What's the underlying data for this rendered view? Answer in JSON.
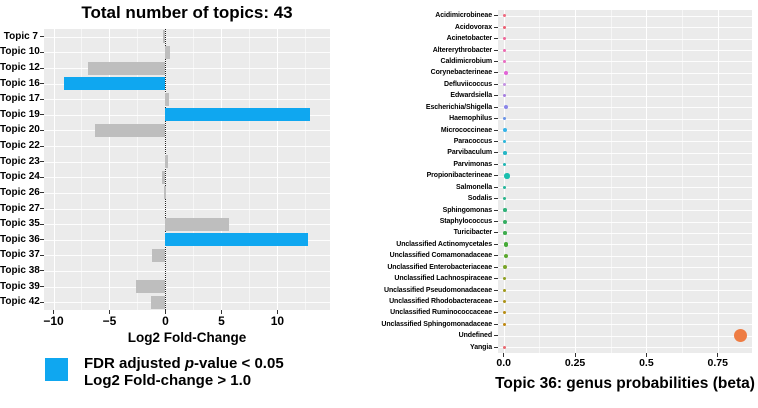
{
  "style": {
    "panel_bg": "#ebebeb",
    "grid_color": "#ffffff",
    "bar_default": "#bebebe",
    "bar_significant": "#0fa7f0",
    "zero_line_color": "#000000",
    "tick_color": "#333333",
    "text_color": "#000000",
    "background": "#ffffff"
  },
  "chart_data": [
    {
      "type": "bar",
      "orientation": "horizontal",
      "title": "Total number of topics: 43",
      "xlabel": "Log2 Fold-Change",
      "categories": [
        "Topic 7",
        "Topic 10",
        "Topic 12",
        "Topic 16",
        "Topic 17",
        "Topic 19",
        "Topic 20",
        "Topic 22",
        "Topic 23",
        "Topic 24",
        "Topic 26",
        "Topic 27",
        "Topic 35",
        "Topic 36",
        "Topic 37",
        "Topic 38",
        "Topic 39",
        "Topic 42"
      ],
      "values": [
        -0.2,
        0.4,
        -6.9,
        -9.1,
        0.3,
        12.9,
        -6.3,
        0.0,
        0.2,
        -0.3,
        -0.1,
        0.0,
        5.7,
        12.7,
        -1.2,
        0.0,
        -2.6,
        -1.3
      ],
      "significant": [
        false,
        false,
        false,
        true,
        false,
        true,
        false,
        false,
        false,
        false,
        false,
        false,
        false,
        true,
        false,
        false,
        false,
        false
      ],
      "xlim": [
        -10.85,
        14.7
      ],
      "x_ticks": [
        -10,
        -5,
        0,
        5,
        10
      ],
      "x_tick_labels": [
        "−10",
        "−5",
        "0",
        "5",
        "10"
      ],
      "grid": true,
      "zero_line": 0,
      "legend": {
        "position": "bottom-left",
        "swatch_color": "#0fa7f0",
        "line1_pre": "FDR adjusted ",
        "line1_italic": "p",
        "line1_post": "-value < 0.05",
        "line2": "Log2 Fold-change > 1.0"
      }
    },
    {
      "type": "scatter",
      "title": "Topic 36: genus probabilities (beta)",
      "xlabel": "",
      "categories": [
        "Acidimicrobineae",
        "Acidovorax",
        "Acinetobacter",
        "Altererythrobacter",
        "Caldimicrobium",
        "Corynebacterineae",
        "Defluviicoccus",
        "Edwardsiella",
        "Escherichia/Shigella",
        "Haemophilus",
        "Micrococcineae",
        "Paracoccus",
        "Parvibaculum",
        "Parvimonas",
        "Propionibacterineae",
        "Salmonella",
        "Sodalis",
        "Sphingomonas",
        "Staphylococcus",
        "Turicibacter",
        "Unclassified Actinomycetales",
        "Unclassified Comamonadaceae",
        "Unclassified Enterobacteriaceae",
        "Unclassified Lachnospiraceae",
        "Unclassified Pseudomonadaceae",
        "Unclassified Rhodobacteraceae",
        "Unclassified Ruminococcaceae",
        "Unclassified Sphingomonadaceae",
        "Undefined",
        "Yangia"
      ],
      "values": [
        0.002,
        0.002,
        0.002,
        0.002,
        0.002,
        0.008,
        0.002,
        0.003,
        0.008,
        0.003,
        0.005,
        0.003,
        0.004,
        0.003,
        0.012,
        0.003,
        0.003,
        0.004,
        0.005,
        0.004,
        0.008,
        0.008,
        0.005,
        0.002,
        0.002,
        0.002,
        0.002,
        0.002,
        0.83,
        0.002
      ],
      "point_sizes": [
        3,
        3,
        3,
        3,
        3,
        4.5,
        3,
        3,
        4.5,
        3,
        4,
        3,
        3.5,
        3,
        5.5,
        3,
        3,
        3.5,
        4,
        3.5,
        4.5,
        4.5,
        4,
        3,
        3,
        3,
        3,
        3,
        13,
        3
      ],
      "point_colors": [
        "#ef6a80",
        "#ec5f72",
        "#ee689a",
        "#ec6bb1",
        "#e96ec3",
        "#e263d6",
        "#c593e3",
        "#a77ee0",
        "#8a86e8",
        "#6a93e6",
        "#35b3e8",
        "#2cb6da",
        "#26b7c6",
        "#22b7b4",
        "#1bbfae",
        "#25b69c",
        "#2ab48c",
        "#30b179",
        "#35ae62",
        "#3ead4e",
        "#46ab38",
        "#5ba82e",
        "#79a428",
        "#8f9f22",
        "#a0991c",
        "#ad9318",
        "#b88e14",
        "#c08912",
        "#ee7c43",
        "#ea6a71"
      ],
      "xlim": [
        -0.02,
        0.87
      ],
      "x_ticks": [
        0,
        0.25,
        0.5,
        0.75
      ],
      "x_tick_labels": [
        "0.0",
        "0.25",
        "0.5",
        "0.75"
      ],
      "x_minor_ticks": [
        0.125,
        0.375,
        0.625
      ],
      "grid": true
    }
  ]
}
